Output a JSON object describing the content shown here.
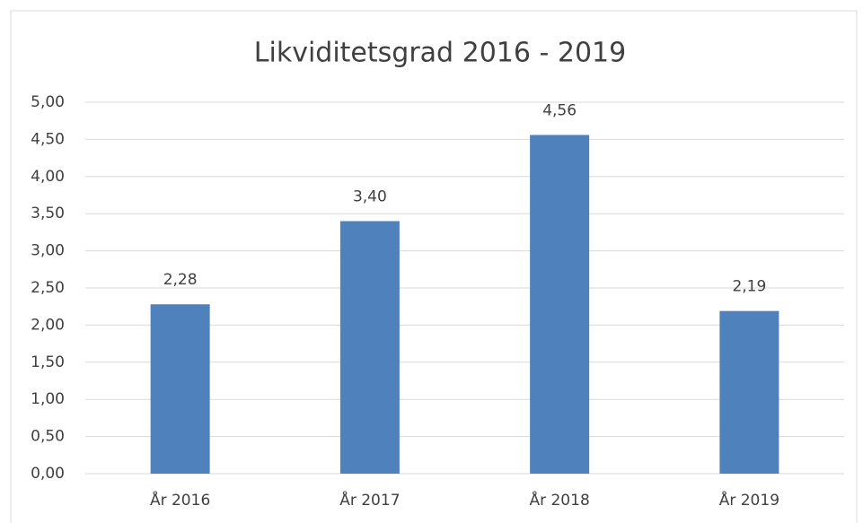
{
  "chart_data": {
    "type": "bar",
    "title": "Likviditetsgrad 2016 - 2019",
    "categories": [
      "År 2016",
      "År 2017",
      "År 2018",
      "År 2019"
    ],
    "values": [
      2.28,
      3.4,
      4.56,
      2.19
    ],
    "value_labels": [
      "2,28",
      "3,40",
      "4,56",
      "2,19"
    ],
    "color": "#4f81bd",
    "ylim": [
      0,
      5
    ],
    "yticks": [
      {
        "value": 0,
        "label": "0,00"
      },
      {
        "value": 0.5,
        "label": "0,50"
      },
      {
        "value": 1,
        "label": "1,00"
      },
      {
        "value": 1.5,
        "label": "1,50"
      },
      {
        "value": 2,
        "label": "2,00"
      },
      {
        "value": 2.5,
        "label": "2,50"
      },
      {
        "value": 3,
        "label": "3,00"
      },
      {
        "value": 3.5,
        "label": "3,50"
      },
      {
        "value": 4,
        "label": "4,00"
      },
      {
        "value": 4.5,
        "label": "4,50"
      },
      {
        "value": 5,
        "label": "5,00"
      }
    ],
    "grid": true
  }
}
